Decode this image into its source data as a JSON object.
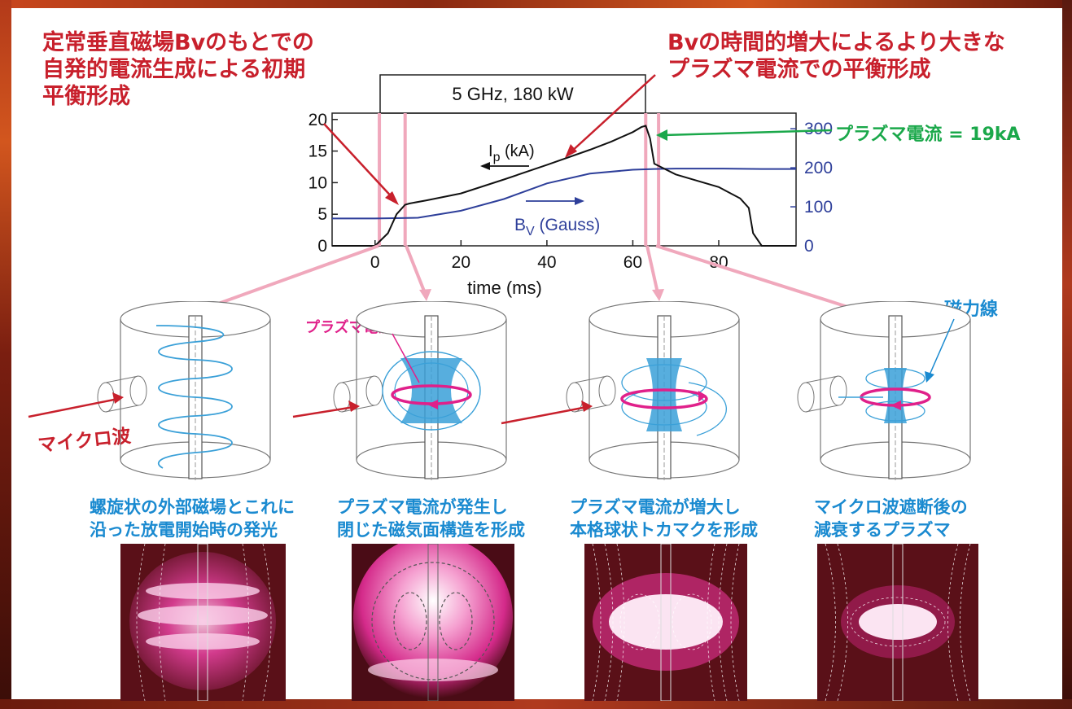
{
  "annotations": {
    "left_title": "定常垂直磁場Bvのもとでの\n自発的電流生成による初期\n平衡形成",
    "right_title": "Bvの時間的増大によるより大きな\nプラズマ電流での平衡形成",
    "plasma_current_label": "プラズマ電流 = 19kA",
    "field_lines_label": "磁力線",
    "plasma_current_small": "プラズマ電流",
    "microwave_label": "マイクロ波"
  },
  "chart_data": {
    "type": "line",
    "header_box": "5 GHz, 180 kW",
    "xlabel": "time (ms)",
    "x_ticks": [
      "0",
      "20",
      "40",
      "60",
      "80"
    ],
    "y_left_ticks": [
      "0",
      "5",
      "10",
      "15",
      "20"
    ],
    "y_right_ticks": [
      "0",
      "100",
      "200",
      "300"
    ],
    "xlim": [
      -10,
      98
    ],
    "ylim_left": [
      0,
      21
    ],
    "ylim_right": [
      0,
      340
    ],
    "series": [
      {
        "name": "Ip (kA)",
        "color": "#111111",
        "axis": "left",
        "x": [
          -10,
          0,
          3,
          5,
          7,
          8,
          12,
          20,
          30,
          40,
          50,
          55,
          60,
          62,
          63,
          64,
          65,
          70,
          80,
          85,
          87,
          88,
          90,
          98
        ],
        "y": [
          0,
          0,
          2,
          5,
          6.5,
          6.7,
          7.2,
          8.3,
          10.5,
          12.8,
          15.2,
          16.5,
          18,
          18.8,
          19,
          17,
          13,
          11.3,
          9.3,
          7.5,
          6,
          2,
          0,
          0
        ]
      },
      {
        "name": "Bv (Gauss)",
        "color": "#2e3f9a",
        "axis": "right",
        "x": [
          -10,
          0,
          10,
          20,
          30,
          40,
          50,
          60,
          65,
          70,
          80,
          90,
          98
        ],
        "y": [
          70,
          70,
          72,
          90,
          120,
          160,
          185,
          195,
          197,
          198,
          198,
          197,
          197
        ]
      }
    ],
    "labels": {
      "ip_main": "I",
      "ip_sub": "p",
      "ip_unit": " (kA)",
      "bv_main": "B",
      "bv_sub": "V",
      "bv_unit": " (Gauss)"
    },
    "markers_ms": [
      1,
      7,
      63,
      66
    ]
  },
  "captions": [
    "螺旋状の外部磁場とこれに\n沿った放電開始時の発光",
    "プラズマ電流が発生し\n閉じた磁気面構造を形成",
    "プラズマ電流が増大し\n本格球状トカマクを形成",
    "マイクロ波遮断後の\n減衰するプラズマ"
  ],
  "colors": {
    "annotation_red": "#c8202c",
    "green": "#1aa84a",
    "blue": "#1a8ad0",
    "magenta": "#e0208a",
    "pink_marker": "#f0a8bc"
  }
}
